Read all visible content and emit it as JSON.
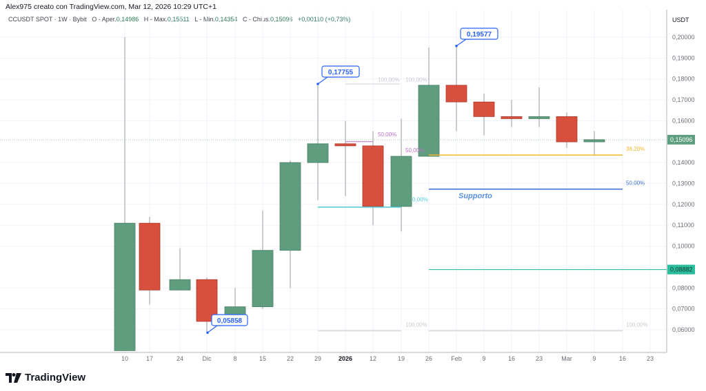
{
  "header": {
    "author_line": "Alex975 creato con TradingView.com, Mar 12, 2026 10:29 UTC+1"
  },
  "legend": {
    "symbol": "CCUSDT SPOT · 1W · Bybit",
    "open_label": "O - Aper.",
    "open": "0,14986",
    "high_label": "H - Max.",
    "high": "0,15511",
    "low_label": "L - Min.",
    "low": "0,14354",
    "close_label": "C - Chius.",
    "close": "0,15096",
    "change": "+0,00110 (+0,73%)"
  },
  "price_axis": {
    "currency": "USDT",
    "ticks": [
      "0,20000",
      "0,19000",
      "0,18000",
      "0,17000",
      "0,16000",
      "0,14000",
      "0,13000",
      "0,12000",
      "0,11000",
      "0,10000",
      "0,08000",
      "0,07000",
      "0,06000"
    ],
    "last_price_badge": "0,15096",
    "line_price_badge": "0,08882"
  },
  "time_axis": {
    "labels": [
      "10",
      "17",
      "24",
      "Dic",
      "8",
      "15",
      "22",
      "29",
      "2026",
      "12",
      "19",
      "26",
      "Feb",
      "9",
      "16",
      "23",
      "Mar",
      "9",
      "16",
      "23"
    ]
  },
  "annotations": {
    "callout_1": "0,17755",
    "callout_2": "0,19577",
    "callout_3": "0,05858",
    "support_label": "Supporto",
    "fib_labels": [
      "100,00%",
      "100,00%",
      "50,00%",
      "50,00%",
      "0,00%",
      "38,20%",
      "50,00%",
      "100,00%",
      "100,00%"
    ]
  },
  "branding": {
    "logo_text": "TradingView"
  },
  "colors": {
    "up": "#5e9e7e",
    "down": "#d94f3d",
    "callout": "#2962ff",
    "fib_gold": "#f5b82e",
    "support_blue": "#3a6fd8",
    "teal_line": "#2bbd9c",
    "cyan_line": "#4cc9d8",
    "purple": "#b86fc9"
  },
  "chart_data": {
    "type": "candlestick",
    "title": "CCUSDT SPOT · 1W · Bybit",
    "xlabel": "",
    "ylabel": "USDT",
    "ylim": [
      0.05,
      0.205
    ],
    "categories": [
      "10",
      "17",
      "24",
      "Dic",
      "8",
      "15",
      "22",
      "29",
      "2026",
      "12",
      "19",
      "26",
      "Feb",
      "9",
      "16",
      "23",
      "Mar",
      "9"
    ],
    "series": [
      {
        "name": "open",
        "values": [
          0.05,
          0.111,
          0.079,
          0.084,
          0.064,
          0.071,
          0.098,
          0.14,
          0.149,
          0.148,
          0.119,
          0.143,
          0.177,
          0.169,
          0.162,
          0.161,
          0.162,
          0.1499
        ]
      },
      {
        "name": "high",
        "values": [
          0.2,
          0.114,
          0.099,
          0.085,
          0.08,
          0.117,
          0.141,
          0.1776,
          0.16,
          0.155,
          0.161,
          0.195,
          0.1958,
          0.173,
          0.17,
          0.176,
          0.164,
          0.1551
        ]
      },
      {
        "name": "low",
        "values": [
          0.05,
          0.072,
          0.079,
          0.0586,
          0.063,
          0.07,
          0.08,
          0.122,
          0.124,
          0.11,
          0.107,
          0.143,
          0.155,
          0.153,
          0.157,
          0.157,
          0.147,
          0.1435
        ]
      },
      {
        "name": "close",
        "values": [
          0.111,
          0.079,
          0.084,
          0.064,
          0.071,
          0.098,
          0.14,
          0.149,
          0.148,
          0.119,
          0.143,
          0.177,
          0.169,
          0.162,
          0.161,
          0.162,
          0.1499,
          0.15096
        ]
      }
    ],
    "horizontal_lines": [
      {
        "label": "38,20%",
        "price": 0.1436,
        "color": "#f5b82e"
      },
      {
        "label": "50,00%",
        "price": 0.1273,
        "color": "#3a6fd8",
        "text": "Supporto"
      },
      {
        "label": "",
        "price": 0.08882,
        "color": "#2bbd9c"
      },
      {
        "label": "100,00%",
        "price": 0.0595,
        "color": "#cccccc"
      }
    ]
  }
}
